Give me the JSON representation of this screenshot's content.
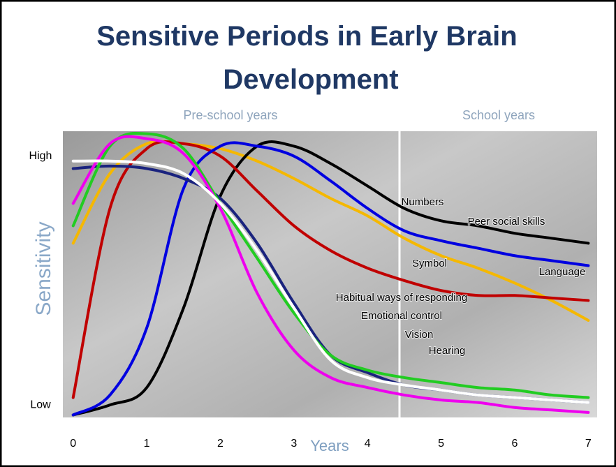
{
  "chart_data": {
    "type": "line",
    "title": "Sensitive Periods in Early Brain Development",
    "x_label": "Years",
    "y_label": "Sensitivity",
    "annotations": [
      "Pre-school years",
      "School years"
    ],
    "x": [
      0,
      0.5,
      1,
      1.5,
      2,
      2.5,
      3,
      3.5,
      4,
      4.5,
      5,
      5.5,
      6,
      6.5,
      7
    ],
    "xlim": [
      -0.14,
      7.12
    ],
    "xticks": [
      0,
      1,
      2,
      3,
      4,
      5,
      6,
      7
    ],
    "ylim": [
      -0.05,
      1.1
    ],
    "yticks": [
      {
        "value": 0,
        "label": "Low"
      },
      {
        "value": 1,
        "label": "High"
      }
    ],
    "series": [
      {
        "name": "Numbers",
        "color": "#f5b800",
        "values": [
          0.65,
          0.93,
          1.05,
          1.05,
          1.03,
          0.98,
          0.91,
          0.83,
          0.76,
          0.67,
          0.6,
          0.55,
          0.49,
          0.42,
          0.34
        ]
      },
      {
        "name": "Peer social skills",
        "color": "#000000",
        "values": [
          -0.04,
          0,
          0.07,
          0.39,
          0.84,
          1.04,
          1.04,
          0.97,
          0.88,
          0.79,
          0.74,
          0.72,
          0.69,
          0.67,
          0.65
        ]
      },
      {
        "name": "Symbol",
        "color": "#c00000",
        "values": [
          0.03,
          0.79,
          1.03,
          1.05,
          1.0,
          0.86,
          0.72,
          0.62,
          0.55,
          0.5,
          0.46,
          0.44,
          0.44,
          0.43,
          0.42
        ]
      },
      {
        "name": "Language",
        "color": "#0000e0",
        "values": [
          -0.04,
          0.04,
          0.31,
          0.87,
          1.04,
          1.04,
          1.0,
          0.9,
          0.79,
          0.7,
          0.66,
          0.63,
          0.6,
          0.58,
          0.56
        ]
      },
      {
        "name": "Habitual ways of responding",
        "color": "#1a237e",
        "values": [
          0.95,
          0.96,
          0.95,
          0.91,
          0.83,
          0.65,
          0.41,
          0.2,
          0.13,
          0.08,
          0.06,
          0.04,
          0.03,
          0.02,
          0.01
        ]
      },
      {
        "name": "Emotional control",
        "color": "#22cc22",
        "values": [
          0.72,
          1.04,
          1.09,
          1.03,
          0.81,
          0.59,
          0.37,
          0.2,
          0.14,
          0.11,
          0.09,
          0.07,
          0.06,
          0.04,
          0.03
        ]
      },
      {
        "name": "Vision",
        "color": "#ee00ee",
        "values": [
          0.81,
          1.05,
          1.07,
          1.01,
          0.79,
          0.45,
          0.22,
          0.11,
          0.07,
          0.04,
          0.02,
          0.01,
          -0.01,
          -0.02,
          -0.03
        ]
      },
      {
        "name": "Hearing",
        "color": "#ffffff",
        "values": [
          0.98,
          0.98,
          0.97,
          0.93,
          0.81,
          0.62,
          0.39,
          0.18,
          0.11,
          0.08,
          0.06,
          0.04,
          0.03,
          0.02,
          0.01
        ]
      }
    ]
  }
}
